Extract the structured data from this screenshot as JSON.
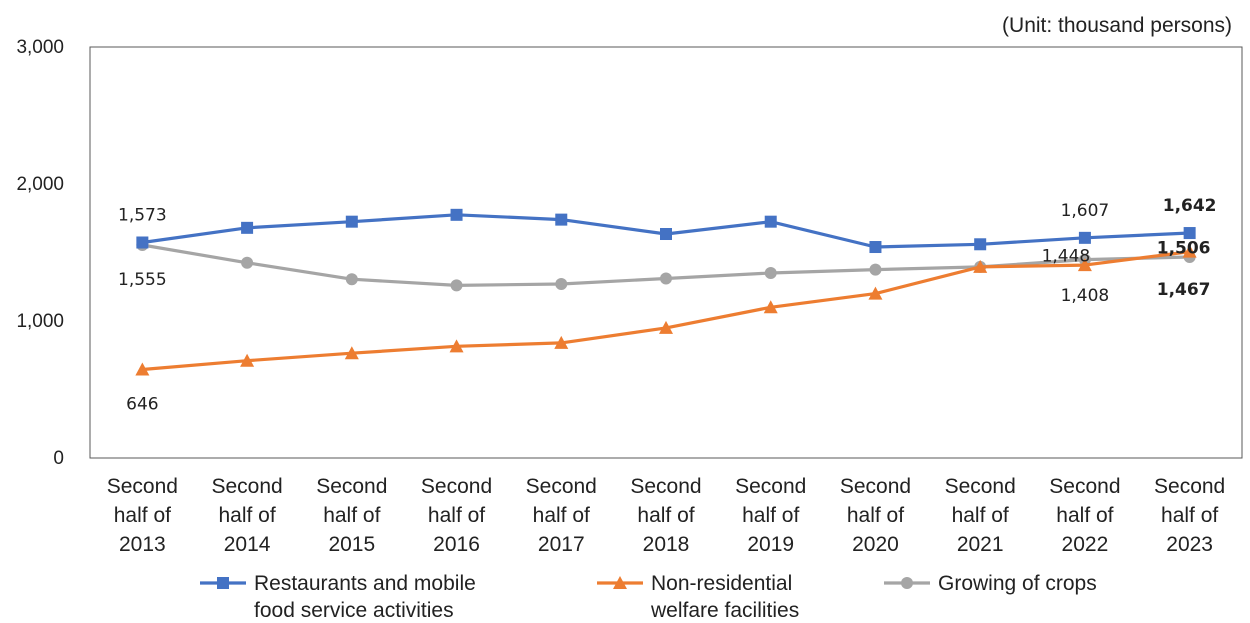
{
  "chart_data": {
    "type": "line",
    "unit_note": "(Unit: thousand persons)",
    "categories": [
      [
        "Second",
        "half of",
        "2013"
      ],
      [
        "Second",
        "half of",
        "2014"
      ],
      [
        "Second",
        "half of",
        "2015"
      ],
      [
        "Second",
        "half of",
        "2016"
      ],
      [
        "Second",
        "half of",
        "2017"
      ],
      [
        "Second",
        "half of",
        "2018"
      ],
      [
        "Second",
        "half of",
        "2019"
      ],
      [
        "Second",
        "half of",
        "2020"
      ],
      [
        "Second",
        "half of",
        "2021"
      ],
      [
        "Second",
        "half of",
        "2022"
      ],
      [
        "Second",
        "half of",
        "2023"
      ]
    ],
    "ylim": [
      0,
      3000
    ],
    "yticks": [
      0,
      1000,
      2000,
      3000
    ],
    "ytick_labels": [
      "0",
      "1,000",
      "2,000",
      "3,000"
    ],
    "grid": false,
    "legend_position": "bottom",
    "series": [
      {
        "name_lines": [
          "Restaurants and mobile",
          "food service activities"
        ],
        "color": "#4472c4",
        "marker": "square",
        "values": [
          1573,
          1680,
          1725,
          1775,
          1740,
          1635,
          1725,
          1540,
          1560,
          1607,
          1642
        ],
        "data_labels": [
          {
            "index": 0,
            "text": "1,573",
            "bold": false
          },
          {
            "index": 9,
            "text": "1,607",
            "bold": false
          },
          {
            "index": 10,
            "text": "1,642",
            "bold": true
          }
        ]
      },
      {
        "name_lines": [
          "Non-residential",
          "welfare facilities"
        ],
        "color": "#ed7d31",
        "marker": "triangle",
        "values": [
          646,
          710,
          765,
          815,
          840,
          950,
          1100,
          1200,
          1395,
          1408,
          1506
        ],
        "data_labels": [
          {
            "index": 0,
            "text": "646",
            "bold": false
          },
          {
            "index": 9,
            "text": "1,408",
            "bold": false
          },
          {
            "index": 10,
            "text": "1,506",
            "bold": true
          }
        ]
      },
      {
        "name_lines": [
          "Growing of crops"
        ],
        "color": "#a5a5a5",
        "marker": "circle",
        "values": [
          1555,
          1425,
          1305,
          1260,
          1270,
          1310,
          1350,
          1375,
          1395,
          1448,
          1467
        ],
        "data_labels": [
          {
            "index": 0,
            "text": "1,555",
            "bold": false
          },
          {
            "index": 9,
            "text": "1,448",
            "bold": false
          },
          {
            "index": 10,
            "text": "1,467",
            "bold": true
          }
        ]
      }
    ]
  }
}
